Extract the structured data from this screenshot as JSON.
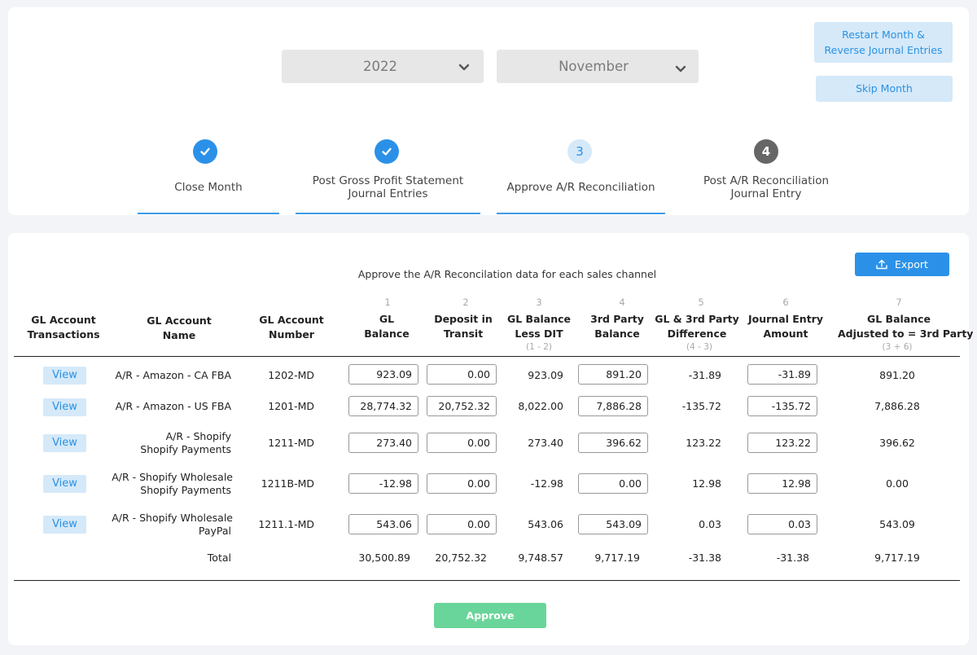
{
  "selectors": {
    "year": "2022",
    "month": "November"
  },
  "actions": {
    "restart_line1": "Restart Month &",
    "restart_line2": "Reverse Journal Entries",
    "skip": "Skip Month",
    "export": "Export",
    "approve": "Approve"
  },
  "steps": [
    {
      "number": "",
      "line1": "Close Month",
      "line2": "",
      "state": "done"
    },
    {
      "number": "",
      "line1": "Post Gross Profit Statement",
      "line2": "Journal Entries",
      "state": "done"
    },
    {
      "number": "3",
      "line1": "Approve A/R Reconciliation",
      "line2": "",
      "state": "active"
    },
    {
      "number": "4",
      "line1": "Post A/R Reconciliation",
      "line2": "Journal Entry",
      "state": "pending"
    }
  ],
  "table": {
    "instruction": "Approve the A/R Reconcilation data for each sales channel",
    "headers": {
      "transactions": [
        "GL Account",
        "Transactions"
      ],
      "name": [
        "GL Account",
        "Name"
      ],
      "number": [
        "GL Account",
        "Number"
      ],
      "gl_balance": {
        "num": "1",
        "line1": "GL",
        "line2": "Balance"
      },
      "dit": {
        "num": "2",
        "line1": "Deposit in",
        "line2": "Transit"
      },
      "less_dit": {
        "num": "3",
        "line1": "GL Balance",
        "line2": "Less DIT",
        "sub": "(1 - 2)"
      },
      "third_party": {
        "num": "4",
        "line1": "3rd Party",
        "line2": "Balance"
      },
      "difference": {
        "num": "5",
        "line1": "GL & 3rd Party",
        "line2": "Difference",
        "sub": "(4 - 3)"
      },
      "je_amount": {
        "num": "6",
        "line1": "Journal Entry",
        "line2": "Amount"
      },
      "adjusted": {
        "num": "7",
        "line1": "GL Balance",
        "line2": "Adjusted to = 3rd Party",
        "sub": "(3 + 6)"
      }
    },
    "view_label": "View",
    "rows": [
      {
        "name1": "A/R - Amazon - CA FBA",
        "name2": "",
        "number": "1202-MD",
        "gl": "923.09",
        "dit": "0.00",
        "less": "923.09",
        "third": "891.20",
        "diff": "-31.89",
        "je": "-31.89",
        "adj": "891.20"
      },
      {
        "name1": "A/R - Amazon - US FBA",
        "name2": "",
        "number": "1201-MD",
        "gl": "28,774.32",
        "dit": "20,752.32",
        "less": "8,022.00",
        "third": "7,886.28",
        "diff": "-135.72",
        "je": "-135.72",
        "adj": "7,886.28"
      },
      {
        "name1": "A/R -  Shopify",
        "name2": "Shopify Payments",
        "number": "1211-MD",
        "gl": "273.40",
        "dit": "0.00",
        "less": "273.40",
        "third": "396.62",
        "diff": "123.22",
        "je": "123.22",
        "adj": "396.62"
      },
      {
        "name1": "A/R - Shopify Wholesale",
        "name2": "Shopify Payments",
        "number": "1211B-MD",
        "gl": "-12.98",
        "dit": "0.00",
        "less": "-12.98",
        "third": "0.00",
        "diff": "12.98",
        "je": "12.98",
        "adj": "0.00"
      },
      {
        "name1": "A/R - Shopify Wholesale",
        "name2": "PayPal",
        "number": "1211.1-MD",
        "gl": "543.06",
        "dit": "0.00",
        "less": "543.06",
        "third": "543.09",
        "diff": "0.03",
        "je": "0.03",
        "adj": "543.09"
      }
    ],
    "total": {
      "label": "Total",
      "gl": "30,500.89",
      "dit": "20,752.32",
      "less": "9,748.57",
      "third": "9,717.19",
      "diff": "-31.38",
      "je": "-31.38",
      "adj": "9,717.19"
    }
  },
  "colors": {
    "accent": "#2b91e8",
    "done_step": "#2b91e8",
    "active_step_bg": "#d5e9f9",
    "pending_step": "#666666",
    "approve": "#6ad59a"
  }
}
